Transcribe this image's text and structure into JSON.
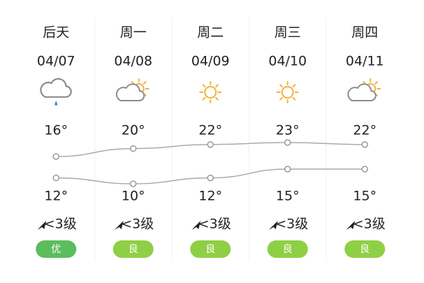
{
  "days": [
    {
      "day": "后天",
      "date": "04/07",
      "icon": "rain",
      "high": 16,
      "high_label": "16°",
      "low": 12,
      "low_label": "12°",
      "wind": "<3级",
      "aqi": "优",
      "aqi_color": "#5cbd5c"
    },
    {
      "day": "周一",
      "date": "04/08",
      "icon": "partly-cloudy",
      "high": 20,
      "high_label": "20°",
      "low": 10,
      "low_label": "10°",
      "wind": "<3级",
      "aqi": "良",
      "aqi_color": "#8fcf45"
    },
    {
      "day": "周二",
      "date": "04/09",
      "icon": "sunny",
      "high": 22,
      "high_label": "22°",
      "low": 12,
      "low_label": "12°",
      "wind": "<3级",
      "aqi": "良",
      "aqi_color": "#8fcf45"
    },
    {
      "day": "周三",
      "date": "04/10",
      "icon": "sunny",
      "high": 23,
      "high_label": "23°",
      "low": 15,
      "low_label": "15°",
      "wind": "<3级",
      "aqi": "良",
      "aqi_color": "#8fcf45"
    },
    {
      "day": "周四",
      "date": "04/11",
      "icon": "partly-cloudy",
      "high": 22,
      "high_label": "22°",
      "low": 15,
      "low_label": "15°",
      "wind": "<3级",
      "aqi": "良",
      "aqi_color": "#8fcf45"
    }
  ]
}
